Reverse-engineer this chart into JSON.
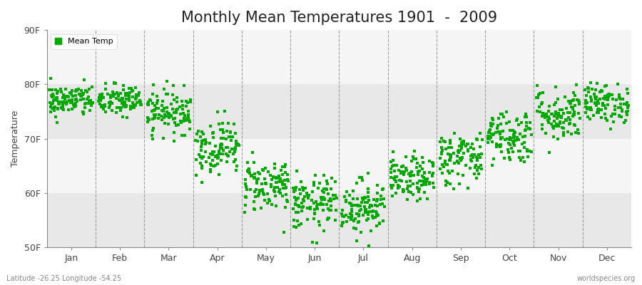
{
  "title": "Monthly Mean Temperatures 1901  -  2009",
  "ylabel": "Temperature",
  "xlabel_labels": [
    "Jan",
    "Feb",
    "Mar",
    "Apr",
    "May",
    "Jun",
    "Jul",
    "Aug",
    "Sep",
    "Oct",
    "Nov",
    "Dec"
  ],
  "ytick_labels": [
    "50F",
    "60F",
    "70F",
    "80F",
    "90F"
  ],
  "ytick_values": [
    50,
    60,
    70,
    80,
    90
  ],
  "ylim": [
    50,
    90
  ],
  "dot_color": "#00aa00",
  "background_color": "#ffffff",
  "band_colors": [
    "#e8e8e8",
    "#f5f5f5"
  ],
  "legend_label": "Mean Temp",
  "footer_left": "Latitude -26.25 Longitude -54.25",
  "footer_right": "worldspecies.org",
  "title_fontsize": 15,
  "label_fontsize": 9,
  "dot_size": 3,
  "n_years": 109,
  "monthly_means": [
    77.0,
    77.0,
    75.0,
    68.5,
    61.5,
    58.0,
    57.5,
    62.5,
    66.5,
    70.5,
    74.5,
    76.5
  ],
  "monthly_stds": [
    1.5,
    1.5,
    2.0,
    2.5,
    2.5,
    2.5,
    2.5,
    2.0,
    2.5,
    2.5,
    2.5,
    1.8
  ]
}
